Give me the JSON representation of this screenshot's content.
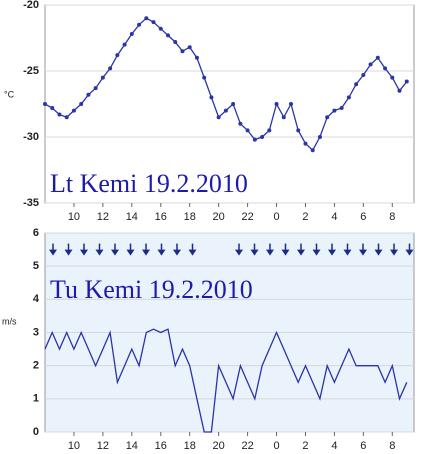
{
  "chart_data": [
    {
      "type": "line",
      "title": "Lt Kemi 19.2.2010",
      "y_label": "°C",
      "color": "#2a35a8",
      "markers": true,
      "grid": true,
      "background": "#ffffff",
      "x": [
        8,
        8.5,
        9,
        9.5,
        10,
        10.5,
        11,
        11.5,
        12,
        12.5,
        13,
        13.5,
        14,
        14.5,
        15,
        15.5,
        16,
        16.5,
        17,
        17.5,
        18,
        18.5,
        19,
        19.5,
        20,
        20.5,
        21,
        21.5,
        22,
        22.5,
        23,
        23.5,
        24,
        24.5,
        25,
        25.5,
        26,
        26.5,
        27,
        27.5,
        28,
        28.5,
        29,
        29.5,
        30,
        30.5,
        31,
        31.5,
        32,
        32.5,
        33
      ],
      "values": [
        -27.5,
        -27.8,
        -28.3,
        -28.5,
        -28.0,
        -27.5,
        -26.8,
        -26.3,
        -25.5,
        -24.8,
        -23.8,
        -23.0,
        -22.2,
        -21.5,
        -21.0,
        -21.3,
        -21.8,
        -22.3,
        -22.8,
        -23.5,
        -23.2,
        -24.0,
        -25.5,
        -27.0,
        -28.5,
        -28.0,
        -27.5,
        -29.0,
        -29.5,
        -30.2,
        -30.0,
        -29.5,
        -27.5,
        -28.5,
        -27.5,
        -29.5,
        -30.5,
        -31.0,
        -30.0,
        -28.5,
        -28.0,
        -27.8,
        -27.0,
        -26.0,
        -25.3,
        -24.5,
        -24.0,
        -24.8,
        -25.5,
        -26.5,
        -25.8
      ],
      "xlim": [
        8,
        33.5
      ],
      "xticks": [
        10,
        12,
        14,
        16,
        18,
        20,
        22,
        {
          "value": 24,
          "label": "0"
        },
        {
          "value": 26,
          "label": "2"
        },
        {
          "value": 28,
          "label": "4"
        },
        {
          "value": 30,
          "label": "6"
        },
        {
          "value": 32,
          "label": "8"
        }
      ],
      "ylim": [
        -35,
        -20
      ],
      "yticks": [
        -35,
        -30,
        -25,
        -20
      ]
    },
    {
      "type": "line",
      "title": "Tu Kemi 19.2.2010",
      "y_label": "m/s",
      "color": "#2a35a8",
      "markers": false,
      "grid": true,
      "background": "#eaf2fb",
      "x": [
        8,
        8.5,
        9,
        9.5,
        10,
        10.5,
        11,
        11.5,
        12,
        12.5,
        13,
        13.5,
        14,
        14.5,
        15,
        15.5,
        16,
        16.5,
        17,
        17.5,
        18,
        18.5,
        19,
        19.5,
        20,
        20.5,
        21,
        21.5,
        22,
        22.5,
        23,
        23.5,
        24,
        24.5,
        25,
        25.5,
        26,
        26.5,
        27,
        27.5,
        28,
        28.5,
        29,
        29.5,
        30,
        30.5,
        31,
        31.5,
        32,
        32.5,
        33
      ],
      "values": [
        2.5,
        3,
        2.5,
        3,
        2.5,
        3,
        2.5,
        2,
        2.5,
        3,
        1.5,
        2,
        2.5,
        2,
        3,
        3.1,
        3,
        3.1,
        2,
        2.5,
        2,
        1,
        0,
        0,
        2,
        1.5,
        1,
        2,
        1.5,
        1,
        2,
        2.5,
        3,
        2.5,
        2,
        1.5,
        2,
        1.5,
        1,
        2,
        1.5,
        2,
        2.5,
        2,
        2,
        2,
        2,
        1.5,
        2,
        1,
        1.5
      ],
      "xlim": [
        8,
        33.5
      ],
      "xticks": [
        10,
        12,
        14,
        16,
        18,
        20,
        22,
        {
          "value": 24,
          "label": "0"
        },
        {
          "value": 26,
          "label": "2"
        },
        {
          "value": 28,
          "label": "4"
        },
        {
          "value": 30,
          "label": "6"
        },
        {
          "value": 32,
          "label": "8"
        }
      ],
      "ylim": [
        0,
        6
      ],
      "yticks": [
        0,
        1,
        2,
        3,
        4,
        5,
        6
      ]
    }
  ]
}
